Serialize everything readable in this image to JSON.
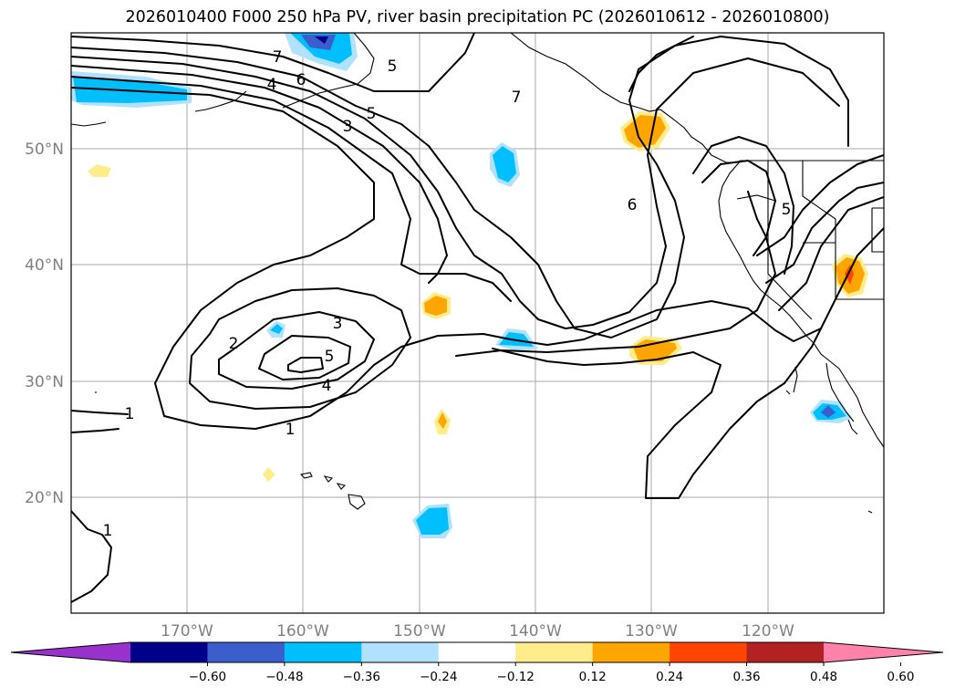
{
  "title": "2026010400 F000 250 hPa PV, river basin precipitation PC (2026010612 - 2026010800)",
  "map": {
    "lat_labels": [
      "50°N",
      "40°N",
      "30°N",
      "20°N"
    ],
    "lon_labels": [
      "170°W",
      "160°W",
      "150°W",
      "140°W",
      "130°W",
      "120°W"
    ],
    "contour_labels": [
      "7",
      "6",
      "5",
      "4",
      "3",
      "5",
      "7",
      "6",
      "5",
      "3",
      "2",
      "5",
      "4",
      "1",
      "1",
      "1"
    ]
  },
  "colorbar": {
    "ticks": [
      "−0.60",
      "−0.48",
      "−0.36",
      "−0.24",
      "−0.12",
      "0.12",
      "0.24",
      "0.36",
      "0.48",
      "0.60"
    ],
    "colors": [
      "#9932cc",
      "#00008b",
      "#3a5fcd",
      "#00bfff",
      "#b0e2ff",
      "#ffffff",
      "#ffec8b",
      "#ffa500",
      "#ff4500",
      "#b22222",
      "#ff82ab"
    ]
  }
}
